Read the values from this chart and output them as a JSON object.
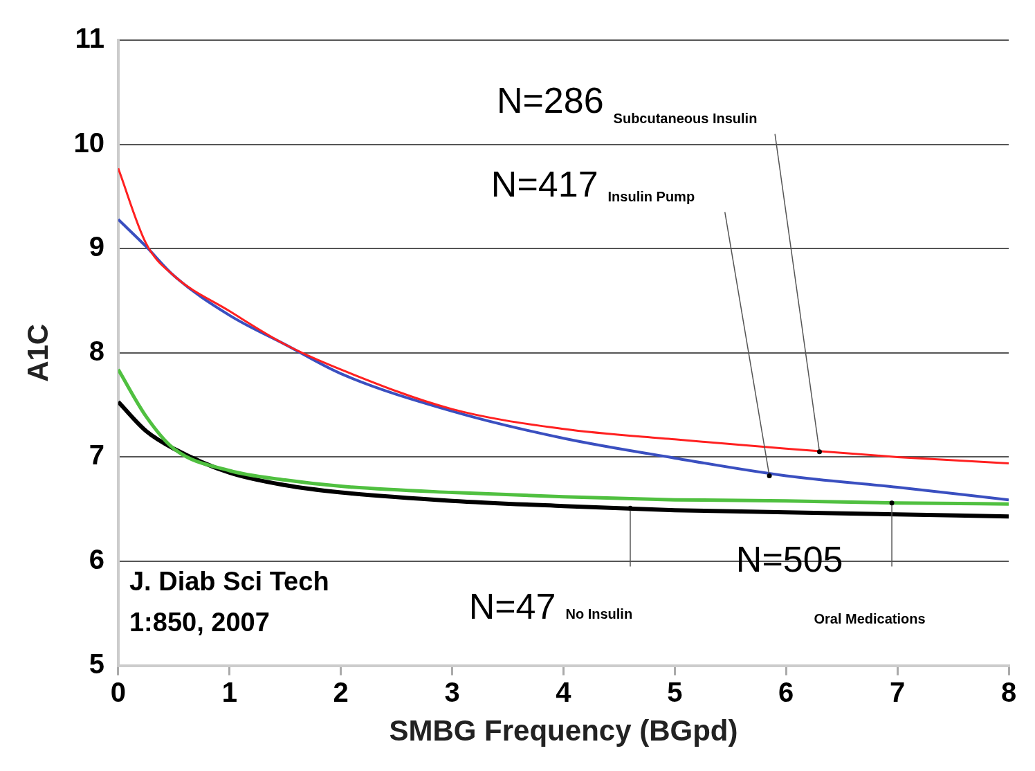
{
  "chart_data": {
    "type": "line",
    "xlabel": "SMBG Frequency (BGpd)",
    "ylabel": "A1C",
    "xlim": [
      0,
      8
    ],
    "xticks": [
      0,
      1,
      2,
      3,
      4,
      5,
      6,
      7,
      8
    ],
    "ylim": [
      5,
      11
    ],
    "yticks": [
      5,
      6,
      7,
      8,
      9,
      10,
      11
    ],
    "grid": "y",
    "legend": false,
    "marker": "none",
    "line_style": "solid",
    "x": [
      0,
      0.25,
      0.5,
      1,
      1.5,
      2,
      3,
      4,
      5,
      6,
      7,
      8
    ],
    "series": [
      {
        "color": "#ff2020",
        "values": [
          9.77,
          9.05,
          8.74,
          8.4,
          8.08,
          7.84,
          7.46,
          7.27,
          7.17,
          7.08,
          7.0,
          6.94
        ]
      },
      {
        "color": "#3a4fc0",
        "values": [
          9.28,
          9.02,
          8.74,
          8.36,
          8.08,
          7.8,
          7.44,
          7.18,
          6.99,
          6.82,
          6.71,
          6.59
        ]
      },
      {
        "color": "#50c040",
        "values": [
          7.84,
          7.39,
          7.08,
          6.87,
          6.78,
          6.72,
          6.66,
          6.62,
          6.59,
          6.58,
          6.56,
          6.55
        ]
      },
      {
        "color": "#000000",
        "values": [
          7.53,
          7.25,
          7.08,
          6.85,
          6.73,
          6.66,
          6.58,
          6.53,
          6.49,
          6.47,
          6.45,
          6.43
        ]
      }
    ],
    "annotations": [
      "N=286",
      "Subcutaneous Insulin",
      "N=417",
      "Insulin Pump",
      "N=47",
      "No Insulin",
      "N=505",
      "Oral Medications",
      "J. Diab Sci Tech",
      "1:850, 2007"
    ]
  }
}
